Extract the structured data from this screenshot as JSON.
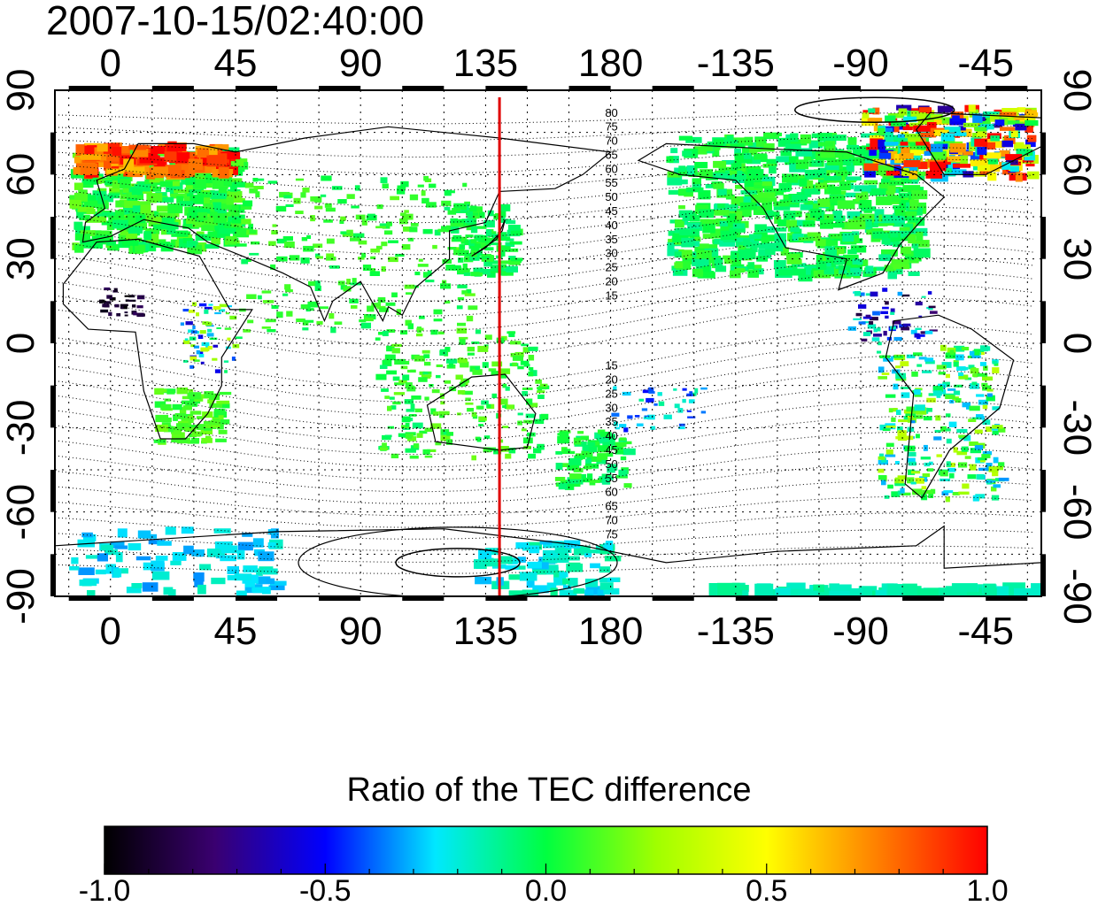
{
  "title": "2007-10-15/02:40:00",
  "colorbar_title": "Ratio of the TEC difference",
  "colorbar": {
    "min": -1.0,
    "max": 1.0,
    "tick_labels": [
      "-1.0",
      "-0.5",
      "0.0",
      "0.5",
      "1.0"
    ],
    "tick_values": [
      -1.0,
      -0.5,
      0.0,
      0.5,
      1.0
    ],
    "colormap_stops": [
      "#000000",
      "#3a0070",
      "#0000ff",
      "#00e8ff",
      "#00ff40",
      "#a0ff00",
      "#ffff00",
      "#ff8000",
      "#ff0000"
    ]
  },
  "axes": {
    "top_labels": [
      "0",
      "45",
      "90",
      "135",
      "180",
      "-135",
      "-90",
      "-45"
    ],
    "bottom_labels": [
      "0",
      "45",
      "90",
      "135",
      "180",
      "-135",
      "-90",
      "-45"
    ],
    "left_labels": [
      "90",
      "60",
      "30",
      "0",
      "-30",
      "-60",
      "-90"
    ],
    "right_labels": [
      "90",
      "60",
      "30",
      "0",
      "-30",
      "-60",
      "-90"
    ],
    "lon_values": [
      0,
      45,
      90,
      135,
      180,
      225,
      270,
      315
    ],
    "lat_values": [
      90,
      60,
      30,
      0,
      -30,
      -60,
      -90
    ],
    "lon_range": [
      -20,
      335
    ],
    "lat_range": [
      -90,
      90
    ],
    "grid": true
  },
  "meridian_line": {
    "lon": 140,
    "color": "#e00000"
  },
  "contour_labels_north": [
    "80",
    "75",
    "70",
    "65",
    "60",
    "55",
    "50",
    "45",
    "40",
    "35",
    "30",
    "25",
    "20",
    "15"
  ],
  "contour_labels_south": [
    "15",
    "20",
    "25",
    "30",
    "35",
    "40",
    "45",
    "50",
    "55",
    "60",
    "65",
    "70",
    "75"
  ]
}
